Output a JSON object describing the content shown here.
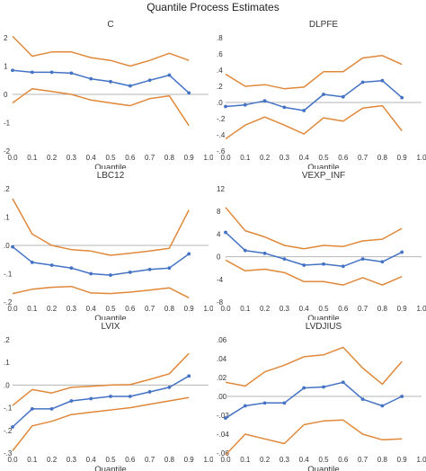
{
  "figure_title": "Quantile Process Estimates",
  "colors": {
    "estimate": "#4472C4",
    "band": "#E0883A",
    "zero_line": "#b5b5b5"
  },
  "chart_data": [
    {
      "type": "line",
      "title": "C",
      "xlabel": "Quantile",
      "xlim": [
        0,
        1
      ],
      "xticks": [
        0,
        0.1,
        0.2,
        0.3,
        0.4,
        0.5,
        0.6,
        0.7,
        0.8,
        0.9,
        1
      ],
      "xtick_labels": [
        "0.0",
        "0.1",
        "0.2",
        "0.3",
        "0.4",
        "0.5",
        "0.6",
        "0.7",
        "0.8",
        "0.9",
        "1.0"
      ],
      "ylim": [
        -2,
        2
      ],
      "yticks": [
        -2,
        -1,
        0,
        1,
        2
      ],
      "ytick_labels": [
        "-2",
        "-1",
        "0",
        "1",
        "2"
      ],
      "x": [
        0.0,
        0.1,
        0.2,
        0.3,
        0.4,
        0.5,
        0.6,
        0.7,
        0.8,
        0.9
      ],
      "series": [
        {
          "role": "estimate",
          "values": [
            0.85,
            0.78,
            0.78,
            0.75,
            0.55,
            0.45,
            0.3,
            0.5,
            0.68,
            0.05
          ]
        },
        {
          "role": "upper",
          "values": [
            2.05,
            1.35,
            1.5,
            1.5,
            1.3,
            1.2,
            1.0,
            1.2,
            1.45,
            1.2
          ]
        },
        {
          "role": "lower",
          "values": [
            -0.3,
            0.2,
            0.1,
            0.0,
            -0.2,
            -0.3,
            -0.4,
            -0.15,
            -0.05,
            -1.1
          ]
        }
      ]
    },
    {
      "type": "line",
      "title": "DLPFE",
      "xlabel": "Quantile",
      "xlim": [
        0,
        1
      ],
      "xticks": [
        0,
        0.1,
        0.2,
        0.3,
        0.4,
        0.5,
        0.6,
        0.7,
        0.8,
        0.9,
        1
      ],
      "xtick_labels": [
        "0.0",
        "0.1",
        "0.2",
        "0.3",
        "0.4",
        "0.5",
        "0.6",
        "0.7",
        "0.8",
        "0.9",
        "1.0"
      ],
      "ylim": [
        -0.6,
        0.8
      ],
      "yticks": [
        -0.6,
        -0.4,
        -0.2,
        0,
        0.2,
        0.4,
        0.6,
        0.8
      ],
      "ytick_labels": [
        "-.6",
        "-.4",
        "-.2",
        ".0",
        ".2",
        ".4",
        ".6",
        ".8"
      ],
      "x": [
        0.0,
        0.1,
        0.2,
        0.3,
        0.4,
        0.5,
        0.6,
        0.7,
        0.8,
        0.9
      ],
      "series": [
        {
          "role": "estimate",
          "values": [
            -0.05,
            -0.03,
            0.02,
            -0.06,
            -0.1,
            0.1,
            0.07,
            0.25,
            0.27,
            0.06
          ]
        },
        {
          "role": "upper",
          "values": [
            0.35,
            0.2,
            0.22,
            0.17,
            0.19,
            0.38,
            0.38,
            0.55,
            0.58,
            0.47
          ]
        },
        {
          "role": "lower",
          "values": [
            -0.45,
            -0.28,
            -0.18,
            -0.28,
            -0.39,
            -0.19,
            -0.23,
            -0.07,
            -0.04,
            -0.35
          ]
        }
      ]
    },
    {
      "type": "line",
      "title": "LBC12",
      "xlabel": "Quantile",
      "xlim": [
        0,
        1
      ],
      "xticks": [
        0,
        0.1,
        0.2,
        0.3,
        0.4,
        0.5,
        0.6,
        0.7,
        0.8,
        0.9,
        1
      ],
      "xtick_labels": [
        "0.0",
        "0.1",
        "0.2",
        "0.3",
        "0.4",
        "0.5",
        "0.6",
        "0.7",
        "0.8",
        "0.9",
        "1.0"
      ],
      "ylim": [
        -0.2,
        0.2
      ],
      "yticks": [
        -0.2,
        -0.1,
        0,
        0.1,
        0.2
      ],
      "ytick_labels": [
        "-.2",
        "-.1",
        ".0",
        ".1",
        ".2"
      ],
      "x": [
        0.0,
        0.1,
        0.2,
        0.3,
        0.4,
        0.5,
        0.6,
        0.7,
        0.8,
        0.9
      ],
      "series": [
        {
          "role": "estimate",
          "values": [
            -0.005,
            -0.06,
            -0.07,
            -0.08,
            -0.1,
            -0.105,
            -0.095,
            -0.085,
            -0.08,
            -0.03
          ]
        },
        {
          "role": "upper",
          "values": [
            0.165,
            0.04,
            0.0,
            -0.015,
            -0.02,
            -0.035,
            -0.028,
            -0.02,
            -0.01,
            0.125
          ]
        },
        {
          "role": "lower",
          "values": [
            -0.17,
            -0.155,
            -0.148,
            -0.145,
            -0.168,
            -0.17,
            -0.165,
            -0.158,
            -0.15,
            -0.185
          ]
        }
      ]
    },
    {
      "type": "line",
      "title": "VEXP_INF",
      "xlabel": "Quantile",
      "xlim": [
        0,
        1
      ],
      "xticks": [
        0,
        0.1,
        0.2,
        0.3,
        0.4,
        0.5,
        0.6,
        0.7,
        0.8,
        0.9,
        1
      ],
      "xtick_labels": [
        "0.0",
        "0.1",
        "0.2",
        "0.3",
        "0.4",
        "0.5",
        "0.6",
        "0.7",
        "0.8",
        "0.9",
        "1.0"
      ],
      "ylim": [
        -8,
        12
      ],
      "yticks": [
        -8,
        -4,
        0,
        4,
        8,
        12
      ],
      "ytick_labels": [
        "-8",
        "-4",
        "0",
        "4",
        "8",
        "12"
      ],
      "x": [
        0.0,
        0.1,
        0.2,
        0.3,
        0.4,
        0.5,
        0.6,
        0.7,
        0.8,
        0.9
      ],
      "series": [
        {
          "role": "estimate",
          "values": [
            4.3,
            1.1,
            0.6,
            -0.4,
            -1.5,
            -1.3,
            -1.7,
            -0.4,
            -0.9,
            0.8
          ]
        },
        {
          "role": "upper",
          "values": [
            8.7,
            4.6,
            3.5,
            2.0,
            1.4,
            2.0,
            1.8,
            2.8,
            3.1,
            5.0
          ]
        },
        {
          "role": "lower",
          "values": [
            -0.6,
            -2.5,
            -2.2,
            -2.8,
            -4.4,
            -4.4,
            -5.0,
            -3.7,
            -5.0,
            -3.5
          ]
        }
      ]
    },
    {
      "type": "line",
      "title": "LVIX",
      "xlabel": "Quantile",
      "xlim": [
        0,
        1
      ],
      "xticks": [
        0,
        0.1,
        0.2,
        0.3,
        0.4,
        0.5,
        0.6,
        0.7,
        0.8,
        0.9,
        1
      ],
      "xtick_labels": [
        "0.0",
        "0.1",
        "0.2",
        "0.3",
        "0.4",
        "0.5",
        "0.6",
        "0.7",
        "0.8",
        "0.9",
        "1.0"
      ],
      "ylim": [
        -0.3,
        0.2
      ],
      "yticks": [
        -0.3,
        -0.2,
        -0.1,
        0,
        0.1,
        0.2
      ],
      "ytick_labels": [
        "-.3",
        "-.2",
        "-.1",
        ".0",
        ".1",
        ".2"
      ],
      "x": [
        0.0,
        0.1,
        0.2,
        0.3,
        0.4,
        0.5,
        0.6,
        0.7,
        0.8,
        0.9
      ],
      "series": [
        {
          "role": "estimate",
          "values": [
            -0.185,
            -0.105,
            -0.105,
            -0.07,
            -0.06,
            -0.05,
            -0.05,
            -0.03,
            -0.01,
            0.04
          ]
        },
        {
          "role": "upper",
          "values": [
            -0.09,
            -0.02,
            -0.035,
            -0.01,
            -0.005,
            0.0,
            0.002,
            0.025,
            0.05,
            0.14
          ]
        },
        {
          "role": "lower",
          "values": [
            -0.29,
            -0.18,
            -0.16,
            -0.13,
            -0.12,
            -0.11,
            -0.1,
            -0.085,
            -0.07,
            -0.055
          ]
        }
      ]
    },
    {
      "type": "line",
      "title": "LVDJIUS",
      "xlabel": "Quantile",
      "xlim": [
        0,
        1
      ],
      "xticks": [
        0,
        0.1,
        0.2,
        0.3,
        0.4,
        0.5,
        0.6,
        0.7,
        0.8,
        0.9,
        1
      ],
      "xtick_labels": [
        "0.0",
        "0.1",
        "0.2",
        "0.3",
        "0.4",
        "0.5",
        "0.6",
        "0.7",
        "0.8",
        "0.9",
        "1.0"
      ],
      "ylim": [
        -0.06,
        0.06
      ],
      "yticks": [
        -0.06,
        -0.04,
        -0.02,
        0,
        0.02,
        0.04,
        0.06
      ],
      "ytick_labels": [
        "-.06",
        "-.04",
        "-.02",
        ".00",
        ".02",
        ".04",
        ".06"
      ],
      "x": [
        0.0,
        0.1,
        0.2,
        0.3,
        0.4,
        0.5,
        0.6,
        0.7,
        0.8,
        0.9
      ],
      "series": [
        {
          "role": "estimate",
          "values": [
            -0.023,
            -0.01,
            -0.007,
            -0.007,
            0.009,
            0.01,
            0.015,
            -0.003,
            -0.01,
            0.0
          ]
        },
        {
          "role": "upper",
          "values": [
            0.015,
            0.011,
            0.026,
            0.033,
            0.042,
            0.044,
            0.052,
            0.03,
            0.013,
            0.037
          ]
        },
        {
          "role": "lower",
          "values": [
            -0.062,
            -0.04,
            -0.045,
            -0.05,
            -0.03,
            -0.026,
            -0.025,
            -0.04,
            -0.046,
            -0.045
          ]
        }
      ]
    }
  ]
}
